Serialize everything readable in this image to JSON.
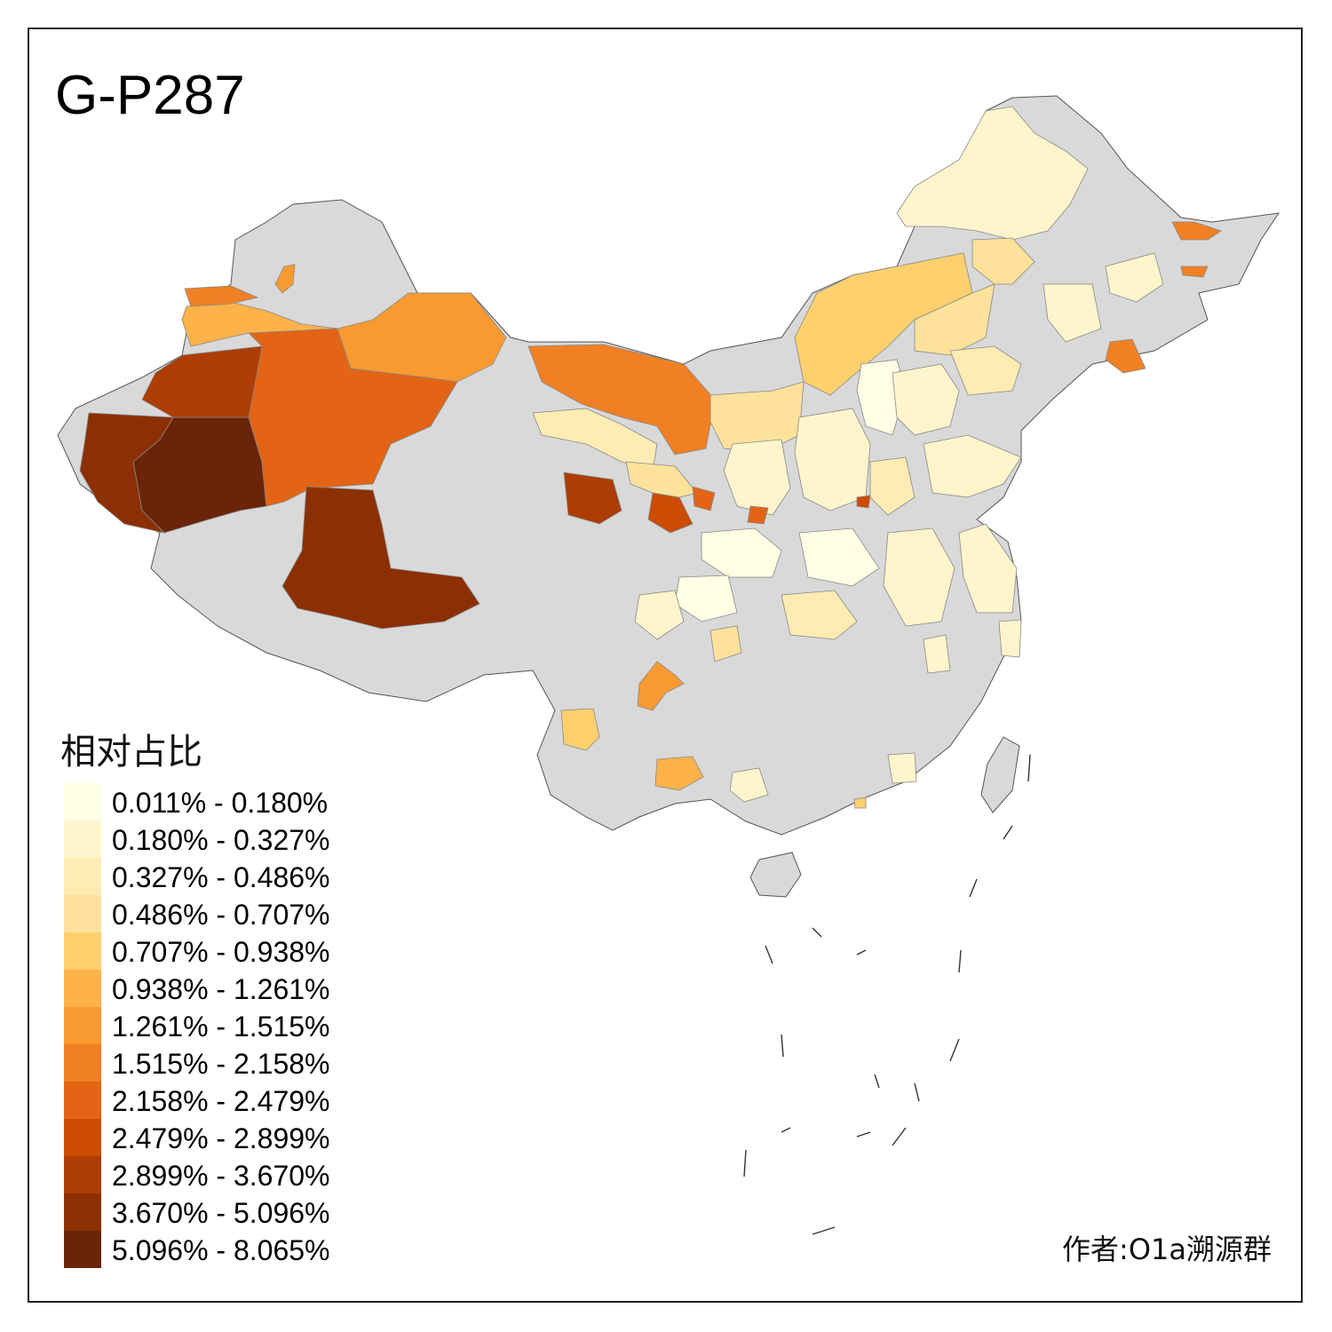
{
  "title": "G-P287",
  "legend": {
    "title": "相对占比",
    "classes": [
      {
        "label": "0.011% - 0.180%",
        "color": "#ffffe5"
      },
      {
        "label": "0.180% - 0.327%",
        "color": "#fff5cc"
      },
      {
        "label": "0.327% - 0.486%",
        "color": "#feecb3"
      },
      {
        "label": "0.486% - 0.707%",
        "color": "#fee29b"
      },
      {
        "label": "0.707% - 0.938%",
        "color": "#fed06e"
      },
      {
        "label": "0.938% - 1.261%",
        "color": "#fdb24a"
      },
      {
        "label": "1.261% - 1.515%",
        "color": "#f89a30"
      },
      {
        "label": "1.515% - 2.158%",
        "color": "#f08023"
      },
      {
        "label": "2.158% - 2.479%",
        "color": "#e36414"
      },
      {
        "label": "2.479% - 2.899%",
        "color": "#cc4c02"
      },
      {
        "label": "2.899% - 3.670%",
        "color": "#ad3d04"
      },
      {
        "label": "3.670% - 5.096%",
        "color": "#8c3004"
      },
      {
        "label": "5.096% - 8.065%",
        "color": "#6b2409"
      }
    ]
  },
  "no_data_color": "#d9d9d9",
  "author": "作者:O1a溯源群"
}
